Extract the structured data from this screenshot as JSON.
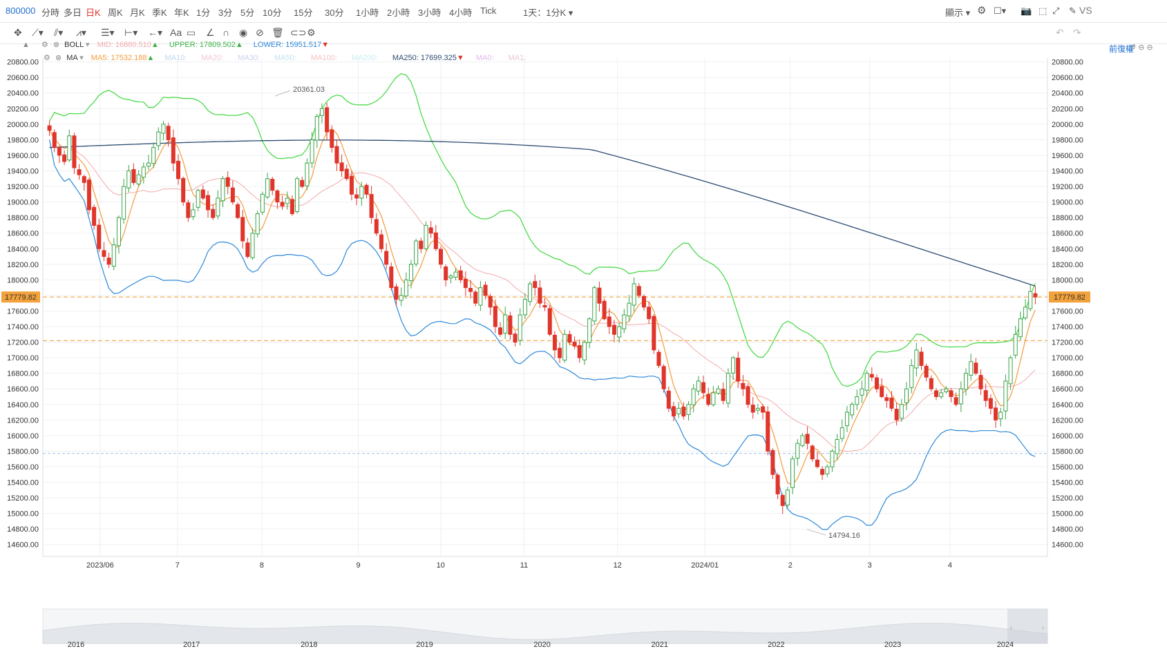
{
  "topbar": {
    "symbol": "800000",
    "timeframes": [
      "分時",
      "多日",
      "日K",
      "周K",
      "月K",
      "季K",
      "年K",
      "1分",
      "3分",
      "5分",
      "10分",
      "15分",
      "30分",
      "1小時",
      "2小時",
      "3小時",
      "4小時",
      "Tick",
      "1天：1分K"
    ],
    "active_index": 2,
    "display_label": "顯示",
    "vs_label": "VS"
  },
  "toolbar": {
    "icons": [
      "crosshair-icon",
      "line-tool-icon",
      "channel-tool-icon",
      "pattern-tool-icon",
      "fib-tool-icon",
      "measure-tool-icon",
      "arrow-tool-icon",
      "text-tool-icon",
      "comment-tool-icon",
      "ruler-icon",
      "magnet-icon",
      "eye-icon",
      "hide-icon",
      "trash-icon",
      "link-icon",
      "settings-icon"
    ]
  },
  "legend": {
    "boll": {
      "name": "BOLL",
      "mid_label": "MID:",
      "mid_value": "16880.510",
      "upper_label": "UPPER:",
      "upper_value": "17809.502",
      "lower_label": "LOWER:",
      "lower_value": "15951.517"
    },
    "ma": {
      "name": "MA",
      "ma5_label": "MA5:",
      "ma5_value": "17532.188",
      "ma10": "MA10:",
      "ma20": "MA20:",
      "ma30": "MA30:",
      "ma50": "MA50:",
      "ma100": "MA100:",
      "ma200": "MA200:",
      "ma250_label": "MA250:",
      "ma250_value": "17699.325",
      "ma0": "MA0:",
      "ma1": "MA1:"
    },
    "restore_label": "前復權"
  },
  "colors": {
    "up": "#37a347",
    "down": "#e0352b",
    "boll_upper": "#3cd73c",
    "boll_lower": "#2b87d8",
    "ma5": "#f39a3c",
    "ma20": "#f4a9aa",
    "ma250": "#2a4a70",
    "price_line": "#f2a13b",
    "low_line": "#a6c8e8"
  },
  "chart_data": {
    "type": "candlestick",
    "ylim": [
      14500,
      20850
    ],
    "y_ticks": [
      "20800.00",
      "20600.00",
      "20400.00",
      "20200.00",
      "20000.00",
      "19800.00",
      "19600.00",
      "19400.00",
      "19200.00",
      "19000.00",
      "18800.00",
      "18600.00",
      "18400.00",
      "18200.00",
      "18000.00",
      "17800.00",
      "17600.00",
      "17400.00",
      "17200.00",
      "17000.00",
      "16800.00",
      "16600.00",
      "16400.00",
      "16200.00",
      "16000.00",
      "15800.00",
      "15600.00",
      "15400.00",
      "15200.00",
      "15000.00",
      "14800.00",
      "14600.00"
    ],
    "x_ticks": [
      "2023/06",
      "7",
      "8",
      "9",
      "10",
      "11",
      "12",
      "2024/01",
      "2",
      "3",
      "4"
    ],
    "last_price": "17779.82",
    "high_annotation": "20361.03",
    "low_annotation": "14794.16",
    "key_levels": [
      17779.82,
      17220,
      15770
    ],
    "candles": [
      19920,
      19700,
      19600,
      19520,
      19850,
      19440,
      19350,
      19250,
      18900,
      18700,
      18400,
      18300,
      18200,
      18450,
      18800,
      19200,
      19400,
      19250,
      19350,
      19450,
      19500,
      19700,
      19900,
      20000,
      19800,
      19500,
      19300,
      19000,
      18800,
      18900,
      19150,
      19050,
      18900,
      18800,
      19050,
      19300,
      19200,
      19000,
      18800,
      18500,
      18300,
      18600,
      18850,
      19100,
      19300,
      19150,
      19000,
      18950,
      19050,
      18850,
      19300,
      19200,
      19500,
      19800,
      20100,
      20200,
      19900,
      19700,
      19500,
      19400,
      19300,
      19100,
      19050,
      19200,
      19100,
      18800,
      18600,
      18400,
      18200,
      17900,
      17750,
      17800,
      18000,
      18200,
      18500,
      18400,
      18700,
      18600,
      18400,
      18200,
      18000,
      18050,
      18100,
      18000,
      17900,
      17850,
      17700,
      17900,
      17800,
      17650,
      17400,
      17300,
      17550,
      17300,
      17200,
      17550,
      17750,
      17950,
      17900,
      17700,
      17650,
      17300,
      17100,
      17000,
      17300,
      17200,
      17150,
      17000,
      17200,
      17500,
      17900,
      17700,
      17500,
      17400,
      17300,
      17400,
      17550,
      17700,
      17950,
      17800,
      17650,
      17500,
      17100,
      16900,
      16600,
      16350,
      16250,
      16350,
      16250,
      16400,
      16600,
      16700,
      16550,
      16400,
      16550,
      16600,
      16450,
      16800,
      17000,
      16700,
      16600,
      16400,
      16300,
      16350,
      16300,
      15800,
      15500,
      15250,
      15100,
      15300,
      15700,
      15900,
      16000,
      15900,
      15700,
      15600,
      15500,
      15600,
      15800,
      15950,
      16100,
      16300,
      16400,
      16500,
      16600,
      16800,
      16750,
      16600,
      16500,
      16450,
      16350,
      16200,
      16400,
      16600,
      16900,
      17100,
      16900,
      16750,
      16600,
      16500,
      16550,
      16600,
      16500,
      16400,
      16600,
      16800,
      16950,
      16800,
      16600,
      16450,
      16350,
      16200,
      16300,
      16700,
      17000,
      17300,
      17500,
      17650,
      17850,
      17780
    ]
  },
  "nav": {
    "years": [
      "2016",
      "2017",
      "2018",
      "2019",
      "2020",
      "2021",
      "2022",
      "2023",
      "2024"
    ]
  }
}
